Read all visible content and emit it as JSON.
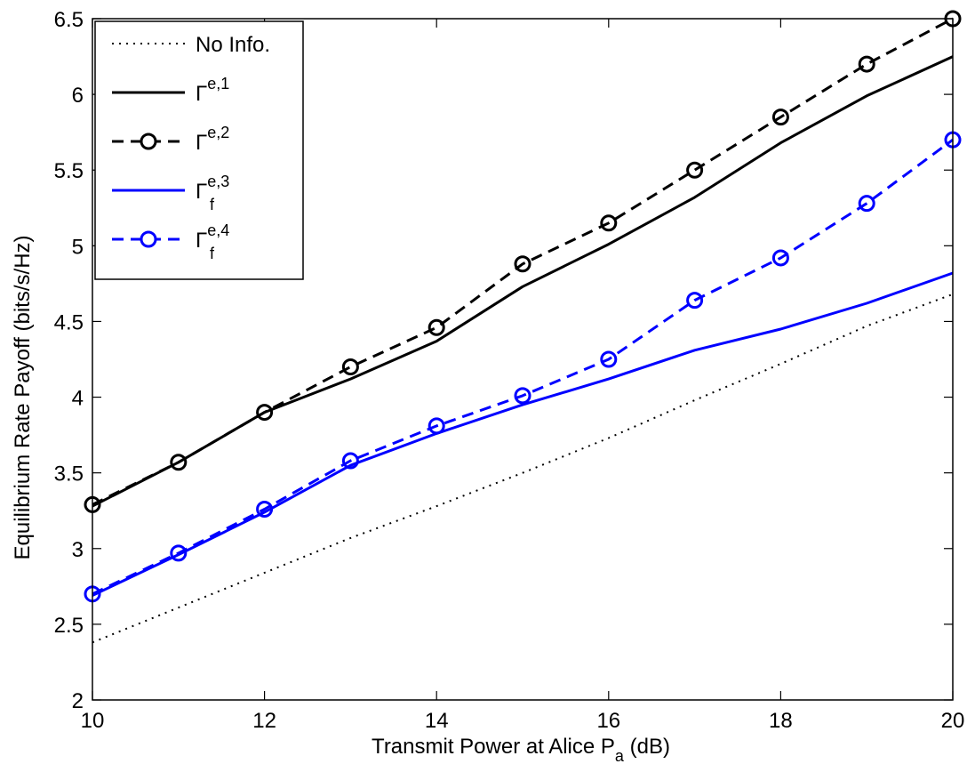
{
  "chart_data": {
    "type": "line",
    "title": "",
    "xlabel": "Transmit Power at Alice P",
    "xlabel_sub": "a",
    "xlabel_suffix": " (dB)",
    "ylabel": "Equilibrium Rate Payoff (bits/s/Hz)",
    "xlim": [
      10,
      20
    ],
    "ylim": [
      2,
      6.5
    ],
    "xticks": [
      10,
      12,
      14,
      16,
      18,
      20
    ],
    "yticks": [
      2,
      2.5,
      3,
      3.5,
      4,
      4.5,
      5,
      5.5,
      6,
      6.5
    ],
    "grid": false,
    "legend_position": "top-left",
    "x": [
      10,
      11,
      12,
      13,
      14,
      15,
      16,
      17,
      18,
      19,
      20
    ],
    "series": [
      {
        "name": "No Info.",
        "color": "#000000",
        "dash": "dotted",
        "marker": "none",
        "values": [
          2.38,
          2.61,
          2.84,
          3.07,
          3.28,
          3.5,
          3.73,
          3.98,
          4.22,
          4.47,
          4.68
        ]
      },
      {
        "name": "Γ",
        "sup": "e,1",
        "sub": "",
        "color": "#000000",
        "dash": "solid",
        "marker": "none",
        "values": [
          3.28,
          3.57,
          3.9,
          4.12,
          4.37,
          4.73,
          5.01,
          5.32,
          5.68,
          5.99,
          6.25
        ]
      },
      {
        "name": "Γ",
        "sup": "e,2",
        "sub": "",
        "color": "#000000",
        "dash": "dashed",
        "marker": "circle",
        "values": [
          3.29,
          3.57,
          3.9,
          4.2,
          4.46,
          4.88,
          5.15,
          5.5,
          5.85,
          6.2,
          6.5
        ]
      },
      {
        "name": "Γ",
        "sup": "e,3",
        "sub": "f",
        "color": "#0000ff",
        "dash": "solid",
        "marker": "none",
        "values": [
          2.69,
          2.96,
          3.24,
          3.55,
          3.76,
          3.95,
          4.12,
          4.31,
          4.45,
          4.62,
          4.82
        ]
      },
      {
        "name": "Γ",
        "sup": "e,4",
        "sub": "f",
        "color": "#0000ff",
        "dash": "dashed",
        "marker": "circle",
        "values": [
          2.7,
          2.97,
          3.26,
          3.58,
          3.81,
          4.01,
          4.25,
          4.64,
          4.92,
          5.28,
          5.7
        ]
      }
    ]
  }
}
